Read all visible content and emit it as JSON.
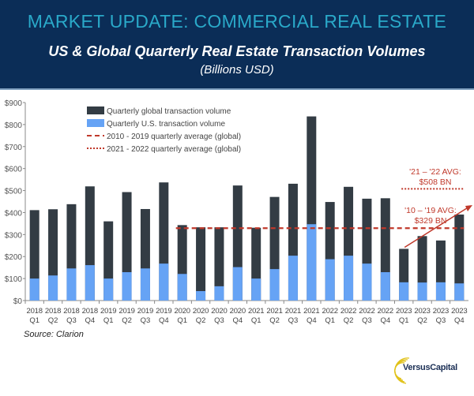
{
  "header": {
    "title": "MARKET UPDATE: COMMERCIAL REAL ESTATE",
    "subtitle": "US & Global Quarterly Real Estate Transaction Volumes",
    "unit": "(Billions USD)"
  },
  "source": "Source: Clarion",
  "logo": {
    "text": "VersusCapital"
  },
  "colors": {
    "header_bg": "#0b2d57",
    "title": "#2aa9c9",
    "global": "#333c44",
    "us": "#66a3f5",
    "avg": "#c0392b"
  },
  "chart_data": {
    "type": "bar",
    "stacked": "overlay",
    "ylim": [
      0,
      900
    ],
    "yticks": [
      "$0",
      "$100",
      "$200",
      "$300",
      "$400",
      "$500",
      "$600",
      "$700",
      "$800",
      "$900"
    ],
    "categories": [
      [
        "2018",
        "Q1"
      ],
      [
        "2018",
        "Q2"
      ],
      [
        "2018",
        "Q3"
      ],
      [
        "2018",
        "Q4"
      ],
      [
        "2019",
        "Q1"
      ],
      [
        "2019",
        "Q2"
      ],
      [
        "2019",
        "Q3"
      ],
      [
        "2019",
        "Q4"
      ],
      [
        "2020",
        "Q1"
      ],
      [
        "2020",
        "Q2"
      ],
      [
        "2020",
        "Q3"
      ],
      [
        "2020",
        "Q4"
      ],
      [
        "2021",
        "Q1"
      ],
      [
        "2021",
        "Q2"
      ],
      [
        "2021",
        "Q3"
      ],
      [
        "2021",
        "Q4"
      ],
      [
        "2022",
        "Q1"
      ],
      [
        "2022",
        "Q2"
      ],
      [
        "2022",
        "Q3"
      ],
      [
        "2022",
        "Q4"
      ],
      [
        "2023",
        "Q1"
      ],
      [
        "2023",
        "Q2"
      ],
      [
        "2023",
        "Q3"
      ],
      [
        "2023",
        "Q4"
      ]
    ],
    "series": [
      {
        "name": "Quarterly global transaction volume",
        "values": [
          411,
          415,
          438,
          519,
          360,
          493,
          416,
          537,
          343,
          333,
          333,
          523,
          331,
          471,
          531,
          837,
          448,
          517,
          463,
          465,
          235,
          293,
          273,
          391
        ]
      },
      {
        "name": "Quarterly U.S. transaction volume",
        "values": [
          100,
          114,
          146,
          161,
          100,
          129,
          146,
          168,
          121,
          43,
          65,
          152,
          100,
          143,
          204,
          347,
          188,
          204,
          168,
          129,
          83,
          82,
          83,
          78
        ]
      }
    ],
    "lines": [
      {
        "name": "2010 - 2019 quarterly average (global)",
        "value": 329,
        "style": "dashed"
      },
      {
        "name": "2021 - 2022 quarterly average (global)",
        "value": 508,
        "style": "dotted"
      }
    ],
    "annotations": [
      {
        "line1": "'21 – '22 AVG:",
        "line2": "$508 BN"
      },
      {
        "line1": "'10 – '19 AVG:",
        "line2": "$329 BN"
      }
    ],
    "legend": "top-left",
    "grid": false
  }
}
